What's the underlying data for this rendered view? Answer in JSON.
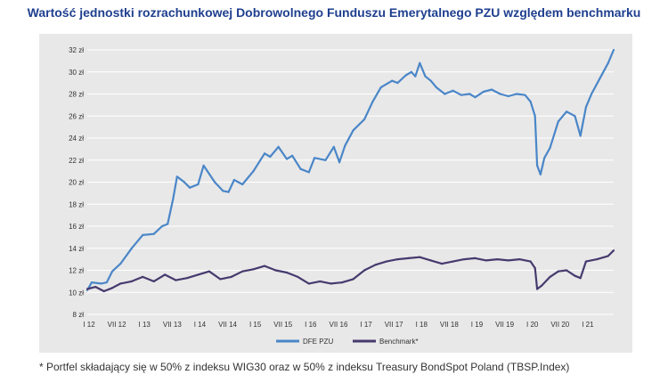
{
  "title": "Wartość jednostki rozrachunkowej Dobrowolnego Funduszu Emerytalnego PZU względem benchmarku",
  "footnote": "* Portfel składający się w 50% z indeksu WIG30 oraz w 50% z indeksu Treasury BondSpot Poland (TBSP.Index)",
  "colors": {
    "dfe": "#4a86c8",
    "benchmark": "#463a6e",
    "grid": "#ffffff",
    "panel": "#e8e8e8"
  },
  "chart_data": {
    "type": "line",
    "title": "Wartość jednostki rozrachunkowej Dobrowolnego Funduszu Emerytalnego PZU względem benchmarku",
    "xlabel": "",
    "ylabel": "",
    "ylim": [
      8,
      32
    ],
    "xlim": [
      2012.0,
      2021.5
    ],
    "grid": true,
    "legend_position": "bottom",
    "y_ticks": [
      {
        "v": 8,
        "label": "8 zł"
      },
      {
        "v": 10,
        "label": "10 zł"
      },
      {
        "v": 12,
        "label": "12 zł"
      },
      {
        "v": 14,
        "label": "14 zł"
      },
      {
        "v": 16,
        "label": "16 zł"
      },
      {
        "v": 18,
        "label": "18 zł"
      },
      {
        "v": 20,
        "label": "20 zł"
      },
      {
        "v": 22,
        "label": "22 zł"
      },
      {
        "v": 24,
        "label": "24 zł"
      },
      {
        "v": 26,
        "label": "26 zł"
      },
      {
        "v": 28,
        "label": "28 zł"
      },
      {
        "v": 30,
        "label": "30 zł"
      },
      {
        "v": 32,
        "label": "32 zł"
      }
    ],
    "x_ticks": [
      {
        "v": 2012.0,
        "label": "I 12"
      },
      {
        "v": 2012.5,
        "label": "VII 12"
      },
      {
        "v": 2013.0,
        "label": "I 13"
      },
      {
        "v": 2013.5,
        "label": "VII 13"
      },
      {
        "v": 2014.0,
        "label": "I 14"
      },
      {
        "v": 2014.5,
        "label": "VII 14"
      },
      {
        "v": 2015.0,
        "label": "I 15"
      },
      {
        "v": 2015.5,
        "label": "VII 15"
      },
      {
        "v": 2016.0,
        "label": "I 16"
      },
      {
        "v": 2016.5,
        "label": "VII 16"
      },
      {
        "v": 2017.0,
        "label": "I 17"
      },
      {
        "v": 2017.5,
        "label": "VII 17"
      },
      {
        "v": 2018.0,
        "label": "I 18"
      },
      {
        "v": 2018.5,
        "label": "VII 18"
      },
      {
        "v": 2019.0,
        "label": "I 19"
      },
      {
        "v": 2019.5,
        "label": "VII 19"
      },
      {
        "v": 2020.0,
        "label": "I 20"
      },
      {
        "v": 2020.5,
        "label": "VII 20"
      },
      {
        "v": 2021.0,
        "label": "I 21"
      }
    ],
    "series": [
      {
        "name": "DFE PZU",
        "color": "#4a86c8",
        "points": [
          [
            2012.0,
            10.2
          ],
          [
            2012.08,
            10.9
          ],
          [
            2012.25,
            10.8
          ],
          [
            2012.35,
            10.9
          ],
          [
            2012.45,
            11.9
          ],
          [
            2012.6,
            12.6
          ],
          [
            2012.8,
            14.0
          ],
          [
            2013.0,
            15.2
          ],
          [
            2013.2,
            15.3
          ],
          [
            2013.35,
            16.0
          ],
          [
            2013.45,
            16.2
          ],
          [
            2013.55,
            18.5
          ],
          [
            2013.62,
            20.5
          ],
          [
            2013.75,
            20.0
          ],
          [
            2013.85,
            19.5
          ],
          [
            2014.0,
            19.8
          ],
          [
            2014.1,
            21.5
          ],
          [
            2014.3,
            20.0
          ],
          [
            2014.45,
            19.2
          ],
          [
            2014.55,
            19.1
          ],
          [
            2014.65,
            20.2
          ],
          [
            2014.8,
            19.8
          ],
          [
            2015.0,
            21.0
          ],
          [
            2015.2,
            22.6
          ],
          [
            2015.3,
            22.3
          ],
          [
            2015.45,
            23.2
          ],
          [
            2015.6,
            22.1
          ],
          [
            2015.7,
            22.4
          ],
          [
            2015.85,
            21.2
          ],
          [
            2016.0,
            20.9
          ],
          [
            2016.1,
            22.2
          ],
          [
            2016.3,
            22.0
          ],
          [
            2016.45,
            23.2
          ],
          [
            2016.55,
            21.8
          ],
          [
            2016.65,
            23.3
          ],
          [
            2016.8,
            24.7
          ],
          [
            2017.0,
            25.7
          ],
          [
            2017.15,
            27.3
          ],
          [
            2017.3,
            28.6
          ],
          [
            2017.5,
            29.2
          ],
          [
            2017.6,
            29.0
          ],
          [
            2017.75,
            29.7
          ],
          [
            2017.85,
            30.0
          ],
          [
            2017.92,
            29.6
          ],
          [
            2018.0,
            30.8
          ],
          [
            2018.1,
            29.6
          ],
          [
            2018.2,
            29.2
          ],
          [
            2018.3,
            28.6
          ],
          [
            2018.45,
            28.0
          ],
          [
            2018.6,
            28.3
          ],
          [
            2018.75,
            27.9
          ],
          [
            2018.9,
            28.0
          ],
          [
            2019.0,
            27.7
          ],
          [
            2019.15,
            28.2
          ],
          [
            2019.3,
            28.4
          ],
          [
            2019.45,
            28.0
          ],
          [
            2019.6,
            27.8
          ],
          [
            2019.75,
            28.0
          ],
          [
            2019.9,
            27.9
          ],
          [
            2020.0,
            27.3
          ],
          [
            2020.08,
            26.0
          ],
          [
            2020.12,
            21.5
          ],
          [
            2020.18,
            20.7
          ],
          [
            2020.25,
            22.2
          ],
          [
            2020.35,
            23.1
          ],
          [
            2020.5,
            25.5
          ],
          [
            2020.65,
            26.4
          ],
          [
            2020.8,
            26.0
          ],
          [
            2020.9,
            24.2
          ],
          [
            2021.0,
            26.8
          ],
          [
            2021.1,
            28.0
          ],
          [
            2021.25,
            29.4
          ],
          [
            2021.4,
            30.8
          ],
          [
            2021.5,
            32.0
          ]
        ]
      },
      {
        "name": "Benchmark*",
        "color": "#463a6e",
        "points": [
          [
            2012.0,
            10.3
          ],
          [
            2012.15,
            10.5
          ],
          [
            2012.3,
            10.1
          ],
          [
            2012.45,
            10.4
          ],
          [
            2012.6,
            10.8
          ],
          [
            2012.8,
            11.0
          ],
          [
            2013.0,
            11.4
          ],
          [
            2013.2,
            11.0
          ],
          [
            2013.4,
            11.6
          ],
          [
            2013.6,
            11.1
          ],
          [
            2013.8,
            11.3
          ],
          [
            2014.0,
            11.6
          ],
          [
            2014.2,
            11.9
          ],
          [
            2014.4,
            11.2
          ],
          [
            2014.6,
            11.4
          ],
          [
            2014.8,
            11.9
          ],
          [
            2015.0,
            12.1
          ],
          [
            2015.2,
            12.4
          ],
          [
            2015.4,
            12.0
          ],
          [
            2015.6,
            11.8
          ],
          [
            2015.8,
            11.4
          ],
          [
            2016.0,
            10.8
          ],
          [
            2016.2,
            11.0
          ],
          [
            2016.4,
            10.8
          ],
          [
            2016.6,
            10.9
          ],
          [
            2016.8,
            11.2
          ],
          [
            2017.0,
            12.0
          ],
          [
            2017.2,
            12.5
          ],
          [
            2017.4,
            12.8
          ],
          [
            2017.6,
            13.0
          ],
          [
            2017.8,
            13.1
          ],
          [
            2018.0,
            13.2
          ],
          [
            2018.2,
            12.9
          ],
          [
            2018.4,
            12.6
          ],
          [
            2018.6,
            12.8
          ],
          [
            2018.8,
            13.0
          ],
          [
            2019.0,
            13.1
          ],
          [
            2019.2,
            12.9
          ],
          [
            2019.4,
            13.0
          ],
          [
            2019.6,
            12.9
          ],
          [
            2019.8,
            13.0
          ],
          [
            2020.0,
            12.8
          ],
          [
            2020.08,
            12.2
          ],
          [
            2020.12,
            10.3
          ],
          [
            2020.2,
            10.6
          ],
          [
            2020.35,
            11.4
          ],
          [
            2020.5,
            11.9
          ],
          [
            2020.65,
            12.0
          ],
          [
            2020.8,
            11.5
          ],
          [
            2020.9,
            11.3
          ],
          [
            2021.0,
            12.8
          ],
          [
            2021.2,
            13.0
          ],
          [
            2021.4,
            13.3
          ],
          [
            2021.5,
            13.8
          ]
        ]
      }
    ]
  }
}
